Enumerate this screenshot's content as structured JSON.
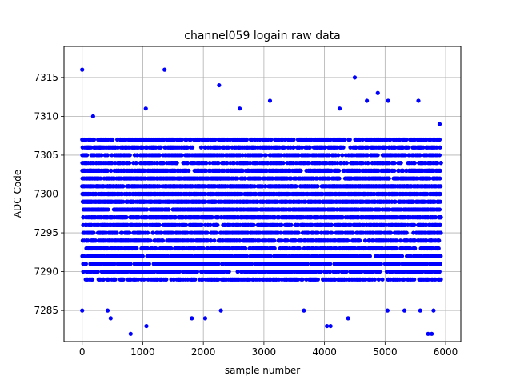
{
  "chart_data": {
    "type": "scatter",
    "title": "channel059 logain raw data",
    "xlabel": "sample number",
    "ylabel": "ADC Code",
    "xlim": [
      -300,
      6250
    ],
    "ylim": [
      7281,
      7319
    ],
    "x_ticks": [
      0,
      1000,
      2000,
      3000,
      4000,
      5000,
      6000
    ],
    "y_ticks": [
      7285,
      7290,
      7295,
      7300,
      7305,
      7310,
      7315
    ],
    "x_tick_labels": [
      "0",
      "1000",
      "2000",
      "3000",
      "4000",
      "5000",
      "6000"
    ],
    "y_tick_labels": [
      "7285",
      "7290",
      "7295",
      "7300",
      "7305",
      "7310",
      "7315"
    ],
    "grid": true,
    "marker_color": "#0000ff",
    "n_samples": 5920,
    "dense_band": [
      7289,
      7307
    ],
    "outliers": [
      [
        0,
        7316
      ],
      [
        1360,
        7316
      ],
      [
        2260,
        7314
      ],
      [
        4500,
        7315
      ],
      [
        4880,
        7313
      ],
      [
        180,
        7310
      ],
      [
        1050,
        7311
      ],
      [
        2600,
        7311
      ],
      [
        3100,
        7312
      ],
      [
        4250,
        7311
      ],
      [
        4700,
        7312
      ],
      [
        5050,
        7312
      ],
      [
        5550,
        7312
      ],
      [
        5900,
        7309
      ],
      [
        0,
        7285
      ],
      [
        420,
        7285
      ],
      [
        470,
        7284
      ],
      [
        800,
        7282
      ],
      [
        1060,
        7283
      ],
      [
        1810,
        7284
      ],
      [
        2030,
        7284
      ],
      [
        2290,
        7285
      ],
      [
        3660,
        7285
      ],
      [
        4040,
        7283
      ],
      [
        4100,
        7283
      ],
      [
        4390,
        7284
      ],
      [
        5040,
        7285
      ],
      [
        5320,
        7285
      ],
      [
        5580,
        7285
      ],
      [
        5710,
        7282
      ],
      [
        5770,
        7282
      ],
      [
        5800,
        7285
      ]
    ]
  }
}
